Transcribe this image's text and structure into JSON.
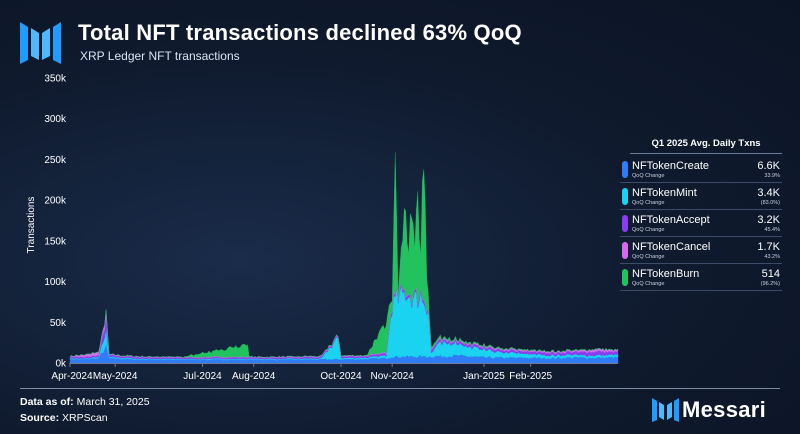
{
  "header": {
    "title": "Total NFT transactions declined 63% QoQ",
    "subtitle": "XRP Ledger NFT transactions"
  },
  "legend": {
    "header": "Q1 2025 Avg. Daily Txns",
    "sub_label": "QoQ Change",
    "items": [
      {
        "name": "NFTokenCreate",
        "value": "6.6K",
        "change": "33.9%",
        "color": "#2f7cf6"
      },
      {
        "name": "NFTokenMint",
        "value": "3.4K",
        "change": "(83.0%)",
        "color": "#19d3f0"
      },
      {
        "name": "NFTokenAccept",
        "value": "3.2K",
        "change": "45.4%",
        "color": "#8a3cf0"
      },
      {
        "name": "NFTokenCancel",
        "value": "1.7K",
        "change": "43.2%",
        "color": "#d36bf0"
      },
      {
        "name": "NFTokenBurn",
        "value": "514",
        "change": "(96.2%)",
        "color": "#22c35e"
      }
    ]
  },
  "footer": {
    "date_label": "Data as of:",
    "date_value": "March 31, 2025",
    "source_label": "Source:",
    "source_value": "XRPScan"
  },
  "brand": {
    "name": "Messari",
    "logo_icon": "messari-m-icon"
  },
  "chart_data": {
    "type": "area",
    "stacked": true,
    "ylabel": "Transactions",
    "xlabel": "",
    "ylim": [
      0,
      350000
    ],
    "yticks": [
      0,
      50000,
      100000,
      150000,
      200000,
      250000,
      300000,
      350000
    ],
    "ytick_labels": [
      "0k",
      "50k",
      "100k",
      "150k",
      "200k",
      "250k",
      "300k",
      "350k"
    ],
    "xlim": [
      "2024-04-01",
      "2025-03-31"
    ],
    "xtick_dates": [
      "2024-04-01",
      "2024-05-01",
      "2024-06-28",
      "2024-08-01",
      "2024-09-28",
      "2024-11-01",
      "2025-01-01",
      "2025-02-01"
    ],
    "xtick_labels": [
      "Apr-2024",
      "May-2024",
      "Jul-2024",
      "Aug-2024",
      "Oct-2024",
      "Nov-2024",
      "Jan-2025",
      "Feb-2025"
    ],
    "grid": false,
    "legend_position": "right",
    "series": [
      {
        "name": "NFTokenCreate",
        "color": "#2f7cf6",
        "points": [
          [
            "2024-04-01",
            5000
          ],
          [
            "2024-04-10",
            4500
          ],
          [
            "2024-04-20",
            6000
          ],
          [
            "2024-04-25",
            20000
          ],
          [
            "2024-04-27",
            6000
          ],
          [
            "2024-05-15",
            4500
          ],
          [
            "2024-06-15",
            4000
          ],
          [
            "2024-07-15",
            4200
          ],
          [
            "2024-08-15",
            4000
          ],
          [
            "2024-09-15",
            4500
          ],
          [
            "2024-10-15",
            5000
          ],
          [
            "2024-10-28",
            6000
          ],
          [
            "2024-11-01",
            8000
          ],
          [
            "2024-11-10",
            8000
          ],
          [
            "2024-11-25",
            8000
          ],
          [
            "2024-12-01",
            8500
          ],
          [
            "2024-12-15",
            9000
          ],
          [
            "2025-01-01",
            7000
          ],
          [
            "2025-01-15",
            6500
          ],
          [
            "2025-02-01",
            6500
          ],
          [
            "2025-02-15",
            6000
          ],
          [
            "2025-03-01",
            7000
          ],
          [
            "2025-03-15",
            6500
          ],
          [
            "2025-03-31",
            7000
          ]
        ]
      },
      {
        "name": "NFTokenMint",
        "color": "#19d3f0",
        "points": [
          [
            "2024-04-01",
            1000
          ],
          [
            "2024-04-10",
            800
          ],
          [
            "2024-04-20",
            1500
          ],
          [
            "2024-04-25",
            20000
          ],
          [
            "2024-04-27",
            1500
          ],
          [
            "2024-05-15",
            1000
          ],
          [
            "2024-06-15",
            900
          ],
          [
            "2024-07-15",
            1000
          ],
          [
            "2024-08-15",
            1000
          ],
          [
            "2024-09-15",
            1200
          ],
          [
            "2024-09-26",
            25000
          ],
          [
            "2024-09-28",
            1500
          ],
          [
            "2024-10-15",
            1500
          ],
          [
            "2024-10-28",
            3000
          ],
          [
            "2024-11-01",
            65000
          ],
          [
            "2024-11-05",
            72000
          ],
          [
            "2024-11-10",
            78000
          ],
          [
            "2024-11-15",
            70000
          ],
          [
            "2024-11-20",
            74000
          ],
          [
            "2024-11-25",
            60000
          ],
          [
            "2024-11-27",
            5000
          ],
          [
            "2024-12-01",
            14000
          ],
          [
            "2024-12-10",
            17000
          ],
          [
            "2024-12-20",
            12000
          ],
          [
            "2025-01-01",
            9000
          ],
          [
            "2025-01-15",
            6000
          ],
          [
            "2025-02-01",
            4500
          ],
          [
            "2025-02-15",
            3500
          ],
          [
            "2025-03-01",
            3000
          ],
          [
            "2025-03-15",
            2800
          ],
          [
            "2025-03-31",
            3000
          ]
        ]
      },
      {
        "name": "NFTokenAccept",
        "color": "#8a3cf0",
        "points": [
          [
            "2024-04-01",
            1500
          ],
          [
            "2024-04-20",
            1800
          ],
          [
            "2024-04-25",
            15000
          ],
          [
            "2024-04-27",
            1800
          ],
          [
            "2024-06-15",
            1500
          ],
          [
            "2024-08-15",
            1500
          ],
          [
            "2024-10-15",
            1800
          ],
          [
            "2024-11-01",
            3000
          ],
          [
            "2024-11-15",
            3500
          ],
          [
            "2024-12-01",
            3000
          ],
          [
            "2024-12-15",
            2500
          ],
          [
            "2025-01-15",
            2800
          ],
          [
            "2025-02-15",
            3000
          ],
          [
            "2025-03-01",
            3300
          ],
          [
            "2025-03-20",
            5000
          ],
          [
            "2025-03-31",
            3400
          ]
        ]
      },
      {
        "name": "NFTokenCancel",
        "color": "#d36bf0",
        "points": [
          [
            "2024-04-01",
            800
          ],
          [
            "2024-04-25",
            5000
          ],
          [
            "2024-04-27",
            900
          ],
          [
            "2024-06-15",
            800
          ],
          [
            "2024-08-15",
            800
          ],
          [
            "2024-10-15",
            900
          ],
          [
            "2024-11-01",
            1200
          ],
          [
            "2024-12-01",
            1300
          ],
          [
            "2024-12-15",
            1200
          ],
          [
            "2025-01-15",
            1400
          ],
          [
            "2025-02-15",
            1600
          ],
          [
            "2025-03-01",
            1700
          ],
          [
            "2025-03-20",
            2800
          ],
          [
            "2025-03-31",
            1800
          ]
        ]
      },
      {
        "name": "NFTokenBurn",
        "color": "#22c35e",
        "points": [
          [
            "2024-04-01",
            200
          ],
          [
            "2024-06-15",
            200
          ],
          [
            "2024-07-28",
            15000
          ],
          [
            "2024-07-29",
            300
          ],
          [
            "2024-10-15",
            300
          ],
          [
            "2024-10-28",
            35000
          ],
          [
            "2024-11-01",
            10000
          ],
          [
            "2024-11-03",
            160000
          ],
          [
            "2024-11-05",
            5000
          ],
          [
            "2024-11-07",
            40000
          ],
          [
            "2024-11-10",
            105000
          ],
          [
            "2024-11-12",
            50000
          ],
          [
            "2024-11-14",
            118000
          ],
          [
            "2024-11-16",
            60000
          ],
          [
            "2024-11-18",
            120000
          ],
          [
            "2024-11-20",
            50000
          ],
          [
            "2024-11-22",
            200000
          ],
          [
            "2024-11-24",
            40000
          ],
          [
            "2024-11-26",
            3000
          ],
          [
            "2024-12-01",
            2000
          ],
          [
            "2024-12-15",
            1500
          ],
          [
            "2025-01-15",
            800
          ],
          [
            "2025-02-15",
            600
          ],
          [
            "2025-03-31",
            500
          ]
        ]
      }
    ]
  }
}
